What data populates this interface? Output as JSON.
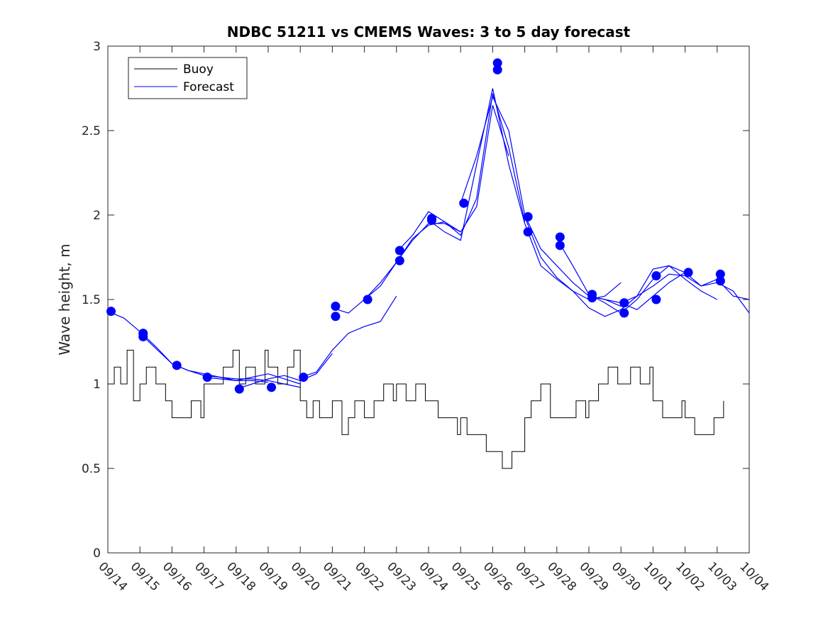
{
  "chart_data": {
    "type": "line",
    "title": "NDBC 51211 vs CMEMS Waves: 3 to 5 day forecast",
    "xlabel": "",
    "ylabel": "Wave height, m",
    "x_ticks": [
      "09/14",
      "09/15",
      "09/16",
      "09/17",
      "09/18",
      "09/19",
      "09/20",
      "09/21",
      "09/22",
      "09/23",
      "09/24",
      "09/25",
      "09/26",
      "09/27",
      "09/28",
      "09/29",
      "09/30",
      "10/01",
      "10/02",
      "10/03",
      "10/04"
    ],
    "y_ticks": [
      "0",
      "0.5",
      "1",
      "1.5",
      "2",
      "2.5",
      "3"
    ],
    "xlim": [
      0,
      20
    ],
    "ylim": [
      0,
      3
    ],
    "grid": false,
    "legend": {
      "position": "top-left",
      "entries": [
        "Buoy",
        "Forecast"
      ]
    },
    "colors": {
      "buoy": "#000000",
      "forecast": "#0000ff"
    },
    "series": [
      {
        "name": "Buoy",
        "x": [
          0.0,
          0.2,
          0.4,
          0.6,
          0.8,
          1.0,
          1.2,
          1.5,
          1.8,
          2.0,
          2.3,
          2.6,
          2.9,
          3.0,
          3.3,
          3.6,
          3.9,
          4.1,
          4.3,
          4.6,
          4.9,
          5.0,
          5.3,
          5.6,
          5.8,
          6.0,
          6.2,
          6.4,
          6.6,
          6.9,
          7.0,
          7.3,
          7.5,
          7.7,
          8.0,
          8.3,
          8.6,
          8.9,
          9.0,
          9.3,
          9.6,
          9.9,
          10.0,
          10.3,
          10.6,
          10.9,
          11.0,
          11.2,
          11.5,
          11.8,
          12.0,
          12.3,
          12.6,
          12.9,
          13.0,
          13.2,
          13.5,
          13.8,
          14.0,
          14.3,
          14.6,
          14.9,
          15.0,
          15.3,
          15.6,
          15.9,
          16.0,
          16.3,
          16.6,
          16.9,
          17.0,
          17.3,
          17.6,
          17.9,
          18.0,
          18.3,
          18.6,
          18.9,
          19.0,
          19.2
        ],
        "values": [
          1.0,
          1.1,
          1.0,
          1.2,
          0.9,
          1.0,
          1.1,
          1.0,
          0.9,
          0.8,
          0.8,
          0.9,
          0.8,
          1.0,
          1.0,
          1.1,
          1.2,
          1.0,
          1.1,
          1.0,
          1.2,
          1.1,
          1.0,
          1.1,
          1.2,
          0.9,
          0.8,
          0.9,
          0.8,
          0.8,
          0.9,
          0.7,
          0.8,
          0.9,
          0.8,
          0.9,
          1.0,
          0.9,
          1.0,
          0.9,
          1.0,
          0.9,
          0.9,
          0.8,
          0.8,
          0.7,
          0.8,
          0.7,
          0.7,
          0.6,
          0.6,
          0.5,
          0.6,
          0.6,
          0.8,
          0.9,
          1.0,
          0.8,
          0.8,
          0.8,
          0.9,
          0.8,
          0.9,
          1.0,
          1.1,
          1.0,
          1.0,
          1.1,
          1.0,
          1.1,
          0.9,
          0.8,
          0.8,
          0.9,
          0.8,
          0.7,
          0.7,
          0.8,
          0.8,
          0.9
        ]
      },
      {
        "name": "Forecast",
        "segments": [
          {
            "x": [
              0.0,
              0.5,
              1.0,
              1.5,
              2.0
            ],
            "values": [
              1.43,
              1.39,
              1.31,
              1.22,
              1.12
            ]
          },
          {
            "x": [
              1.0,
              1.5,
              2.0,
              2.5,
              3.0,
              3.5,
              4.0,
              4.5,
              5.0
            ],
            "values": [
              1.3,
              1.21,
              1.12,
              1.08,
              1.06,
              1.04,
              1.02,
              1.02,
              1.01
            ]
          },
          {
            "x": [
              2.0,
              2.5,
              3.0,
              3.5,
              4.0,
              4.5,
              5.0,
              5.5,
              6.0
            ],
            "values": [
              1.12,
              1.08,
              1.05,
              1.04,
              1.03,
              1.03,
              1.02,
              1.0,
              0.98
            ]
          },
          {
            "x": [
              3.0,
              3.5,
              4.0,
              4.5,
              5.0,
              5.5,
              6.0
            ],
            "values": [
              1.04,
              1.03,
              1.02,
              1.04,
              1.06,
              1.03,
              1.0
            ]
          },
          {
            "x": [
              4.0,
              4.5,
              5.0,
              5.5,
              6.0,
              6.5,
              7.0
            ],
            "values": [
              0.97,
              1.0,
              1.03,
              1.05,
              1.02,
              1.06,
              1.18
            ]
          },
          {
            "x": [
              6.0,
              6.5,
              7.0,
              7.5,
              8.0,
              8.5,
              9.0
            ],
            "values": [
              1.04,
              1.07,
              1.2,
              1.3,
              1.34,
              1.37,
              1.52
            ]
          },
          {
            "x": [
              7.0,
              7.5,
              8.0,
              8.5,
              9.0,
              9.5,
              10.0,
              10.5,
              11.0
            ],
            "values": [
              1.45,
              1.42,
              1.5,
              1.6,
              1.72,
              1.85,
              1.95,
              1.95,
              1.9
            ]
          },
          {
            "x": [
              8.0,
              8.5,
              9.0,
              9.5,
              10.0,
              10.5,
              11.0,
              11.5,
              12.0,
              12.5
            ],
            "values": [
              1.5,
              1.58,
              1.72,
              1.86,
              1.94,
              1.96,
              1.9,
              2.05,
              2.65,
              2.35
            ]
          },
          {
            "x": [
              9.0,
              9.5,
              10.0,
              10.5,
              11.0,
              11.5,
              12.0,
              12.5,
              13.0
            ],
            "values": [
              1.78,
              1.88,
              2.02,
              1.96,
              1.88,
              2.1,
              2.72,
              2.4,
              1.96
            ]
          },
          {
            "x": [
              10.0,
              10.5,
              11.0,
              11.5,
              12.0,
              12.5,
              13.0,
              13.5,
              14.0,
              14.5,
              15.0,
              15.5,
              16.0
            ],
            "values": [
              1.97,
              1.9,
              1.85,
              2.3,
              2.75,
              2.3,
              1.95,
              1.7,
              1.62,
              1.55,
              1.5,
              1.52,
              1.6
            ]
          },
          {
            "x": [
              11.0,
              11.5,
              12.0,
              12.5,
              13.0,
              13.5,
              14.0,
              14.5,
              15.0,
              15.5,
              16.0
            ],
            "values": [
              2.07,
              2.35,
              2.7,
              2.5,
              2.0,
              1.8,
              1.7,
              1.6,
              1.52,
              1.5,
              1.46
            ]
          },
          {
            "x": [
              13.0,
              13.5,
              14.0,
              14.5,
              15.0,
              15.5,
              16.0,
              16.5,
              17.0,
              17.5,
              18.0
            ],
            "values": [
              1.99,
              1.75,
              1.63,
              1.55,
              1.45,
              1.4,
              1.44,
              1.52,
              1.68,
              1.7,
              1.66
            ]
          },
          {
            "x": [
              14.0,
              14.5,
              15.0,
              15.5,
              16.0,
              16.5,
              17.0,
              17.5,
              18.0,
              18.5,
              19.0
            ],
            "values": [
              1.86,
              1.7,
              1.53,
              1.48,
              1.42,
              1.5,
              1.62,
              1.7,
              1.62,
              1.55,
              1.5
            ]
          },
          {
            "x": [
              15.0,
              15.5,
              16.0,
              16.5,
              17.0,
              17.5,
              18.0,
              18.5,
              19.0,
              19.5,
              20.0
            ],
            "values": [
              1.52,
              1.5,
              1.48,
              1.52,
              1.58,
              1.65,
              1.64,
              1.58,
              1.6,
              1.55,
              1.42
            ]
          },
          {
            "x": [
              16.0,
              16.5,
              17.0,
              17.5,
              18.0,
              18.5,
              19.0,
              19.5,
              20.0
            ],
            "values": [
              1.48,
              1.44,
              1.52,
              1.6,
              1.66,
              1.58,
              1.62,
              1.52,
              1.5
            ]
          }
        ],
        "markers": {
          "x": [
            0.1,
            1.1,
            1.1,
            2.15,
            3.1,
            4.1,
            5.1,
            6.1,
            7.1,
            7.1,
            8.1,
            9.1,
            9.1,
            10.1,
            10.1,
            11.1,
            12.15,
            12.15,
            13.1,
            13.1,
            14.1,
            14.1,
            15.1,
            15.1,
            16.1,
            16.1,
            17.1,
            17.1,
            18.1,
            19.1,
            19.1
          ],
          "values": [
            1.43,
            1.3,
            1.28,
            1.11,
            1.04,
            0.97,
            0.98,
            1.04,
            1.46,
            1.4,
            1.5,
            1.79,
            1.73,
            1.98,
            1.97,
            2.07,
            2.9,
            2.86,
            1.99,
            1.9,
            1.87,
            1.82,
            1.53,
            1.51,
            1.48,
            1.42,
            1.64,
            1.5,
            1.66,
            1.65,
            1.61
          ]
        }
      }
    ]
  }
}
